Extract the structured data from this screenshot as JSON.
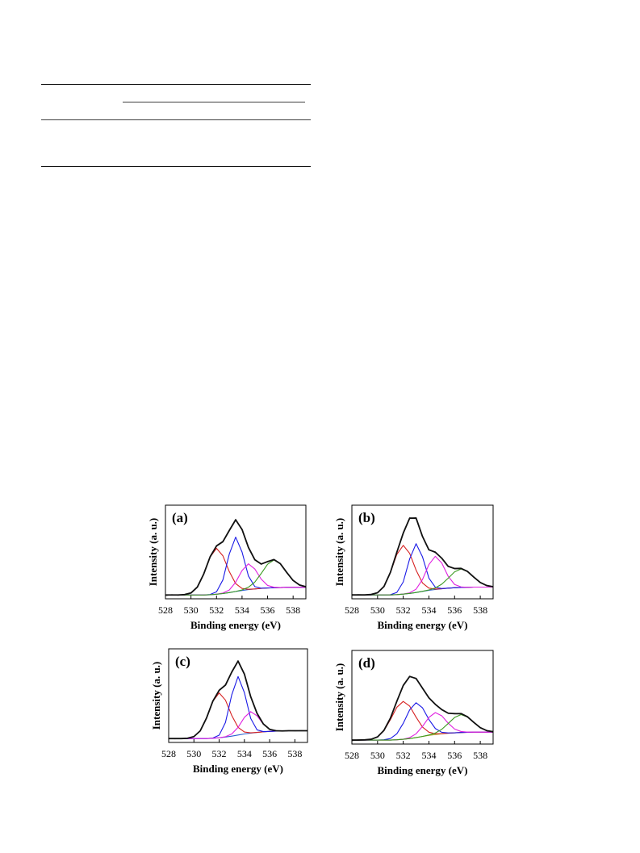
{
  "chart_data": [
    {
      "type": "line",
      "title": "(a)",
      "xlabel": "Binding energy (eV)",
      "ylabel": "Intensity (a. u.)",
      "x": [
        528,
        528.5,
        529,
        529.5,
        530,
        530.5,
        531,
        531.5,
        532,
        532.5,
        533,
        533.5,
        534,
        534.5,
        535,
        535.5,
        536,
        536.5,
        537,
        537.5,
        538,
        538.5,
        539
      ],
      "xlim": [
        528,
        539
      ],
      "xticks": [
        528,
        530,
        532,
        534,
        536,
        538
      ],
      "ylim": [
        0,
        98
      ],
      "series": [
        {
          "color": "#999999",
          "values": [
            3,
            4.5,
            3.5,
            4.8,
            6.5,
            12,
            25.5,
            44.5,
            56,
            60.5,
            71,
            83.5,
            72,
            53,
            41.5,
            36,
            39.5,
            40.5,
            37,
            27,
            19.5,
            14,
            12.3
          ]
        },
        {
          "color": "#2a5fd0",
          "values": [
            4,
            4,
            4,
            4,
            4,
            4,
            4,
            4.3,
            4.8,
            5.5,
            6.5,
            7.6,
            8.7,
            9.6,
            10.3,
            10.9,
            11.3,
            11.6,
            11.8,
            12,
            12,
            12,
            12
          ]
        },
        {
          "color": "#d62020",
          "values": [
            4,
            4,
            4,
            4.4,
            6.1,
            12.3,
            26,
            43.8,
            52.8,
            45,
            28.5,
            15.9,
            10.8,
            10,
            10.3,
            10.9,
            11.3,
            11.6,
            11.8,
            12,
            12,
            12,
            12
          ]
        },
        {
          "color": "#1a1ae6",
          "values": [
            4,
            4,
            4,
            4,
            4,
            4,
            4,
            4.5,
            7.3,
            19.8,
            46.8,
            64.6,
            49,
            23.9,
            12.8,
            11.1,
            11.3,
            11.6,
            11.8,
            12,
            12,
            12,
            12
          ]
        },
        {
          "color": "#e020e0",
          "values": [
            4,
            4,
            4,
            4,
            4,
            4,
            4,
            4.3,
            4.8,
            6,
            9.2,
            17.3,
            29.6,
            36.6,
            31.2,
            20.6,
            14,
            12.1,
            11.8,
            12,
            12,
            12,
            12
          ]
        },
        {
          "color": "#3a9a20",
          "values": [
            4,
            4,
            4,
            4,
            4,
            4,
            4,
            4.3,
            4.8,
            5.5,
            6.5,
            7.7,
            9.3,
            12.1,
            17.5,
            26.5,
            36.2,
            40.6,
            36.7,
            27.6,
            19.2,
            14.5,
            12.6
          ]
        },
        {
          "color": "#111111",
          "values": [
            4,
            4,
            4,
            4.4,
            6.1,
            12.3,
            26,
            44,
            55.3,
            59.8,
            71.5,
            82.7,
            72.6,
            53.8,
            40.9,
            36.4,
            38.9,
            41.1,
            36.7,
            27.6,
            19.2,
            14.5,
            12.6
          ]
        }
      ]
    },
    {
      "type": "line",
      "title": "(b)",
      "xlabel": "Binding energy (eV)",
      "ylabel": "Intensity (a. u.)",
      "x": [
        528,
        528.5,
        529,
        529.5,
        530,
        530.5,
        531,
        531.5,
        532,
        532.5,
        533,
        533.5,
        534,
        534.5,
        535,
        535.5,
        536,
        536.5,
        537,
        537.5,
        538,
        538.5,
        539
      ],
      "xlim": [
        528,
        539
      ],
      "xticks": [
        528,
        530,
        532,
        534,
        536,
        538
      ],
      "ylim": [
        0,
        96
      ],
      "series": [
        {
          "color": "#999999",
          "values": [
            3.5,
            4.5,
            4,
            4.8,
            6.5,
            12.2,
            27.5,
            47,
            68.5,
            83.5,
            82,
            63.5,
            50.8,
            47.2,
            42,
            33,
            31.5,
            30.6,
            28.6,
            21.8,
            17,
            13.2,
            12.6
          ]
        },
        {
          "color": "#2a5fd0",
          "values": [
            4,
            4,
            4,
            4,
            4,
            4,
            4,
            4.3,
            4.8,
            5.5,
            6.5,
            7.6,
            8.7,
            9.6,
            10.3,
            10.9,
            11.3,
            11.6,
            11.8,
            12,
            12,
            12,
            12
          ]
        },
        {
          "color": "#d62020",
          "values": [
            4,
            4,
            4,
            4.4,
            6.2,
            12.6,
            26.9,
            45.5,
            54.8,
            46.6,
            29.4,
            16.2,
            10.9,
            10,
            10.3,
            10.9,
            11.3,
            11.6,
            11.8,
            12,
            12,
            12,
            12
          ]
        },
        {
          "color": "#1a1ae6",
          "values": [
            4,
            4,
            4,
            4,
            4,
            4,
            4.2,
            6.5,
            17.3,
            40.9,
            56.5,
            43,
            21.2,
            11.8,
            10.5,
            10.9,
            11.3,
            11.6,
            11.8,
            12,
            12,
            12,
            12
          ]
        },
        {
          "color": "#e020e0",
          "values": [
            4,
            4,
            4,
            4,
            4,
            4,
            4,
            4.3,
            4.8,
            6.1,
            9.9,
            19.8,
            35.1,
            43.6,
            36.7,
            23.1,
            14.7,
            12.2,
            11.8,
            12,
            12,
            12,
            12
          ]
        },
        {
          "color": "#3a9a20",
          "values": [
            4,
            4,
            4,
            4,
            4,
            4,
            4,
            4.3,
            4.8,
            5.5,
            6.5,
            7.7,
            9.1,
            11.2,
            15,
            21.1,
            27.6,
            30.6,
            28.1,
            22.2,
            16.7,
            13.6,
            12.4
          ]
        },
        {
          "color": "#111111",
          "values": [
            4,
            4,
            4,
            4.4,
            6.2,
            12.6,
            27.1,
            47.7,
            67.3,
            82.6,
            82.8,
            63.9,
            50.2,
            47.8,
            41.6,
            33.3,
            31,
            31.2,
            28.1,
            22.2,
            16.7,
            13.6,
            12.4
          ]
        }
      ]
    },
    {
      "type": "line",
      "title": "(c)",
      "xlabel": "Binding energy (eV)",
      "ylabel": "Intensity (a. u.)",
      "x": [
        528,
        528.5,
        529,
        529.5,
        530,
        530.5,
        531,
        531.5,
        532,
        532.5,
        533,
        533.5,
        534,
        534.5,
        535,
        535.5,
        536,
        536.5,
        537,
        537.5,
        538,
        538.5,
        539
      ],
      "xlim": [
        528,
        539
      ],
      "xticks": [
        528,
        530,
        532,
        534,
        536,
        538
      ],
      "ylim": [
        0,
        96
      ],
      "series": [
        {
          "color": "#999999",
          "values": [
            4.4,
            3.6,
            4.3,
            4,
            6.4,
            11.5,
            25.6,
            42,
            54,
            59.4,
            71.6,
            84.2,
            69.6,
            47.4,
            29.5,
            19.4,
            13,
            12.4,
            11.5,
            12.3,
            11.8,
            12.2,
            11.9
          ]
        },
        {
          "color": "#2a5fd0",
          "values": [
            4,
            4,
            4,
            4,
            4,
            4,
            4,
            4.3,
            4.8,
            5.5,
            6.5,
            7.6,
            8.7,
            9.6,
            10.3,
            10.9,
            11.3,
            11.6,
            11.8,
            12,
            12,
            12,
            12
          ]
        },
        {
          "color": "#d62020",
          "values": [
            4,
            4,
            4,
            4.3,
            6,
            11.9,
            25.1,
            42.2,
            50.8,
            43.4,
            27.6,
            15.5,
            10.7,
            9.9,
            10.3,
            10.9,
            11.3,
            11.6,
            11.8,
            12,
            12,
            12,
            12
          ]
        },
        {
          "color": "#1a1ae6",
          "values": [
            4,
            4,
            4,
            4,
            4,
            4,
            4,
            4.5,
            7.4,
            20.5,
            48.9,
            67.6,
            51.1,
            24.6,
            12.9,
            11.1,
            11.3,
            11.6,
            11.8,
            12,
            12,
            12,
            12
          ]
        },
        {
          "color": "#e020e0",
          "values": [
            4,
            4,
            4,
            4,
            4,
            4,
            4,
            4.3,
            4.8,
            5.9,
            8.7,
            15.5,
            25.7,
            31.6,
            27.3,
            18.8,
            13.5,
            12,
            11.8,
            12,
            12,
            12,
            12
          ]
        },
        {
          "color": "#111111",
          "values": [
            4,
            4,
            4,
            4.3,
            6,
            11.9,
            25.1,
            42.4,
            53.4,
            58.8,
            72.2,
            83.4,
            70.1,
            46.9,
            29.9,
            19,
            13.5,
            12,
            11.8,
            12,
            12,
            12,
            12
          ]
        }
      ]
    },
    {
      "type": "line",
      "title": "(d)",
      "xlabel": "Binding energy (eV)",
      "ylabel": "Intensity (a. u.)",
      "x": [
        528,
        528.5,
        529,
        529.5,
        530,
        530.5,
        531,
        531.5,
        532,
        532.5,
        533,
        533.5,
        534,
        534.5,
        535,
        535.5,
        536,
        536.5,
        537,
        537.5,
        538,
        538.5,
        539
      ],
      "xlim": [
        528,
        539
      ],
      "xticks": [
        528,
        530,
        532,
        534,
        536,
        538
      ],
      "ylim": [
        0,
        94
      ],
      "series": [
        {
          "color": "#999999",
          "values": [
            3,
            4.6,
            4.5,
            4.4,
            7.5,
            13.4,
            26.4,
            42.3,
            59.4,
            67.5,
            66.4,
            55.6,
            46.9,
            39.4,
            35,
            30.6,
            31,
            30.1,
            27.8,
            21.3,
            16.8,
            13.2,
            12.6
          ]
        },
        {
          "color": "#a0a020",
          "values": [
            4,
            4,
            4,
            4,
            4,
            4,
            4,
            4.3,
            4.8,
            5.5,
            6.5,
            7.6,
            8.7,
            9.6,
            10.3,
            10.9,
            11.3,
            11.6,
            11.8,
            12,
            12,
            12,
            12
          ]
        },
        {
          "color": "#d62020",
          "values": [
            4,
            4,
            4.2,
            4.8,
            7.2,
            13.5,
            24.5,
            36.9,
            42.8,
            38.1,
            27,
            17.1,
            11.9,
            10.4,
            10.5,
            10.9,
            11.3,
            11.6,
            11.8,
            12,
            12,
            12,
            12
          ]
        },
        {
          "color": "#1a1ae6",
          "values": [
            4,
            4,
            4,
            4,
            4,
            4.3,
            5.5,
            10.3,
            20.8,
            34.3,
            41.5,
            36.4,
            24.7,
            15.6,
            11.8,
            11.2,
            11.3,
            11.6,
            11.8,
            12,
            12,
            12,
            12
          ]
        },
        {
          "color": "#e020e0",
          "values": [
            4,
            4,
            4,
            4,
            4,
            4,
            4,
            4.3,
            4.8,
            6.5,
            10.3,
            17.7,
            26.8,
            31.6,
            28.4,
            21,
            15.1,
            12.6,
            12,
            12,
            12,
            12,
            12
          ]
        },
        {
          "color": "#3a9a20",
          "values": [
            4,
            4,
            4,
            4,
            4,
            4,
            4,
            4.3,
            4.8,
            5.5,
            6.5,
            7.7,
            9.1,
            11.1,
            14.8,
            20.6,
            26.7,
            29.6,
            27.2,
            21.7,
            16.5,
            13.5,
            12.4
          ]
        },
        {
          "color": "#111111",
          "values": [
            4,
            4,
            4.2,
            4.8,
            7.2,
            13.8,
            26,
            42.9,
            58.8,
            67.9,
            65.8,
            56.1,
            46.4,
            39.9,
            34.6,
            31,
            30.5,
            30.6,
            27.4,
            21.7,
            16.5,
            13.5,
            12.4
          ]
        }
      ]
    }
  ]
}
